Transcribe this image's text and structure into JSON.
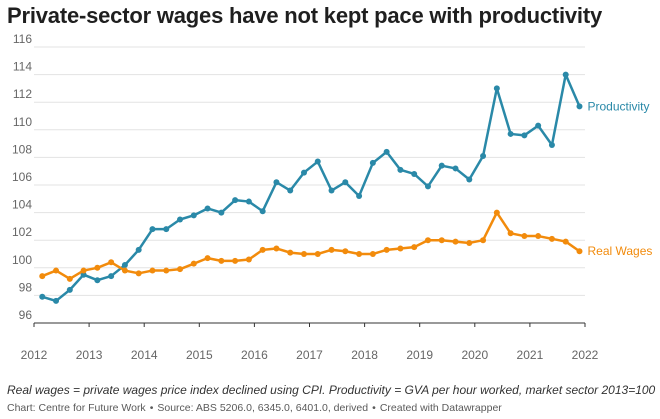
{
  "chart_data": {
    "type": "line",
    "title": "Private-sector wages have not kept pace with productivity",
    "xlabel": "",
    "ylabel": "",
    "xlim": [
      2012,
      2022
    ],
    "ylim": [
      96,
      116
    ],
    "x_ticks": [
      "2012",
      "2013",
      "2014",
      "2015",
      "2016",
      "2017",
      "2018",
      "2019",
      "2020",
      "2021",
      "2022"
    ],
    "y_ticks": [
      "96",
      "98",
      "100",
      "102",
      "104",
      "106",
      "108",
      "110",
      "112",
      "114",
      "116"
    ],
    "grid": true,
    "x": [
      2012.15,
      2012.4,
      2012.65,
      2012.9,
      2013.15,
      2013.4,
      2013.65,
      2013.9,
      2014.15,
      2014.4,
      2014.65,
      2014.9,
      2015.15,
      2015.4,
      2015.65,
      2015.9,
      2016.15,
      2016.4,
      2016.65,
      2016.9,
      2017.15,
      2017.4,
      2017.65,
      2017.9,
      2018.15,
      2018.4,
      2018.65,
      2018.9,
      2019.15,
      2019.4,
      2019.65,
      2019.9,
      2020.15,
      2020.4,
      2020.65,
      2020.9,
      2021.15,
      2021.4,
      2021.65,
      2021.9
    ],
    "series": [
      {
        "name": "Productivity",
        "color": "#2a89a8",
        "values": [
          97.9,
          97.6,
          98.4,
          99.5,
          99.1,
          99.4,
          100.2,
          101.3,
          102.8,
          102.8,
          103.5,
          103.8,
          104.3,
          104.0,
          104.9,
          104.8,
          104.1,
          106.2,
          105.6,
          106.9,
          107.7,
          105.6,
          106.2,
          105.2,
          107.6,
          108.4,
          107.1,
          106.8,
          105.9,
          107.4,
          107.2,
          106.4,
          108.1,
          113.0,
          109.7,
          109.6,
          110.3,
          108.9,
          114.0,
          111.7
        ]
      },
      {
        "name": "Real Wages",
        "color": "#f28b0c",
        "values": [
          99.4,
          99.8,
          99.2,
          99.8,
          100.0,
          100.4,
          99.8,
          99.6,
          99.8,
          99.8,
          99.9,
          100.3,
          100.7,
          100.5,
          100.5,
          100.6,
          101.3,
          101.4,
          101.1,
          101.0,
          101.0,
          101.3,
          101.2,
          101.0,
          101.0,
          101.3,
          101.4,
          101.5,
          102.0,
          102.0,
          101.9,
          101.8,
          102.0,
          104.0,
          102.5,
          102.3,
          102.3,
          102.1,
          101.9,
          101.2
        ]
      }
    ]
  },
  "footnote": "Real wages = private wages price index declined using CPI. Productivity = GVA per hour worked, market sector 2013=100",
  "credit": {
    "chart": "Chart: Centre for Future Work",
    "source": "Source: ABS 5206.0, 6345.0, 6401.0, derived",
    "created": "Created with Datawrapper",
    "separator": "•"
  }
}
